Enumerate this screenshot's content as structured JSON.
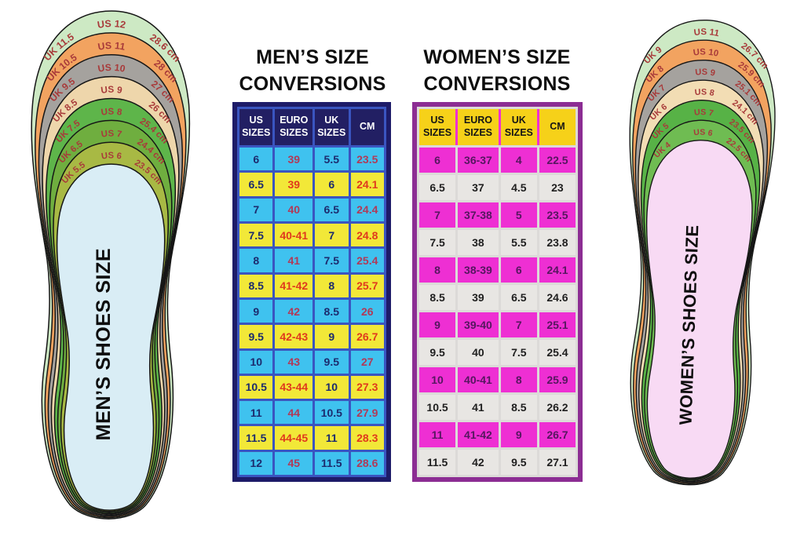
{
  "page": {
    "background": "#ffffff"
  },
  "mens_section": {
    "title_line1": "MEN’S SIZE",
    "title_line2": "CONVERSIONS"
  },
  "womens_section": {
    "title_line1": "WOMEN’S SIZE",
    "title_line2": "CONVERSIONS"
  },
  "chart_data": [
    {
      "type": "table",
      "title": "MEN’S SIZE CONVERSIONS",
      "columns": [
        "US SIZES",
        "EURO SIZES",
        "UK SIZES",
        "CM"
      ],
      "rows": [
        [
          "6",
          "39",
          "5.5",
          "23.5"
        ],
        [
          "6.5",
          "39",
          "6",
          "24.1"
        ],
        [
          "7",
          "40",
          "6.5",
          "24.4"
        ],
        [
          "7.5",
          "40-41",
          "7",
          "24.8"
        ],
        [
          "8",
          "41",
          "7.5",
          "25.4"
        ],
        [
          "8.5",
          "41-42",
          "8",
          "25.7"
        ],
        [
          "9",
          "42",
          "8.5",
          "26"
        ],
        [
          "9.5",
          "42-43",
          "9",
          "26.7"
        ],
        [
          "10",
          "43",
          "9.5",
          "27"
        ],
        [
          "10.5",
          "43-44",
          "10",
          "27.3"
        ],
        [
          "11",
          "44",
          "10.5",
          "27.9"
        ],
        [
          "11.5",
          "44-45",
          "11",
          "28.3"
        ],
        [
          "12",
          "45",
          "11.5",
          "28.6"
        ]
      ],
      "style": {
        "border": "#1d1b68",
        "grid": "#3a55c0",
        "header_bg": "#221f63",
        "header_text": "#ffffff",
        "row_colors": [
          "#3fc2ef",
          "#f2e838"
        ],
        "size_text": "#1c2b6e",
        "accent_text": [
          "#b03a58",
          "#e0391d"
        ]
      }
    },
    {
      "type": "table",
      "title": "WOMEN’S SIZE CONVERSIONS",
      "columns": [
        "US SIZES",
        "EURO SIZES",
        "UK SIZES",
        "CM"
      ],
      "rows": [
        [
          "6",
          "36-37",
          "4",
          "22.5"
        ],
        [
          "6.5",
          "37",
          "4.5",
          "23"
        ],
        [
          "7",
          "37-38",
          "5",
          "23.5"
        ],
        [
          "7.5",
          "38",
          "5.5",
          "23.8"
        ],
        [
          "8",
          "38-39",
          "6",
          "24.1"
        ],
        [
          "8.5",
          "39",
          "6.5",
          "24.6"
        ],
        [
          "9",
          "39-40",
          "7",
          "25.1"
        ],
        [
          "9.5",
          "40",
          "7.5",
          "25.4"
        ],
        [
          "10",
          "40-41",
          "8",
          "25.9"
        ],
        [
          "10.5",
          "41",
          "8.5",
          "26.2"
        ],
        [
          "11",
          "41-42",
          "9",
          "26.7"
        ],
        [
          "11.5",
          "42",
          "9.5",
          "27.1"
        ]
      ],
      "style": {
        "border": "#8c2d93",
        "grid": "#dcdad8",
        "header_bg": "#f6d119",
        "header_text": "#151515",
        "row_colors": [
          "#ee2fd3",
          "#e8e6e3"
        ],
        "row_text": [
          "#55175f",
          "#1f1f1f"
        ]
      }
    }
  ],
  "mens_insole": {
    "label": "MEN’S SHOES SIZE",
    "inner_color": "#d9edf5",
    "band_text_color": "#a83a3a",
    "bands": [
      {
        "uk": "UK 11.5",
        "us": "US 12",
        "cm": "28.6 cm",
        "color": "#cde9c4"
      },
      {
        "uk": "UK 10.5",
        "us": "US 11",
        "cm": "28 cm",
        "color": "#f2a360"
      },
      {
        "uk": "UK 9.5",
        "us": "US 10",
        "cm": "27 cm",
        "color": "#a5a29e"
      },
      {
        "uk": "UK 8.5",
        "us": "US 9",
        "cm": "26 cm",
        "color": "#eed6ab"
      },
      {
        "uk": "UK 7.5",
        "us": "US 8",
        "cm": "25.4 cm",
        "color": "#5eb54a"
      },
      {
        "uk": "UK 6.5",
        "us": "US 7",
        "cm": "24.4 cm",
        "color": "#6fae3f"
      },
      {
        "uk": "UK 5.5",
        "us": "US 6",
        "cm": "23.5 cm",
        "color": "#a8b944"
      }
    ]
  },
  "womens_insole": {
    "label": "WOMEN’S SHOES SIZE",
    "inner_color": "#f8daf4",
    "band_text_color": "#a83a3a",
    "bands": [
      {
        "uk": "UK 9",
        "us": "US 11",
        "cm": "26.7 cm",
        "color": "#cde9c4"
      },
      {
        "uk": "UK 8",
        "us": "US 10",
        "cm": "25.9 cm",
        "color": "#f2a360"
      },
      {
        "uk": "UK 7",
        "us": "US 9",
        "cm": "25.1 cm",
        "color": "#a5a29e"
      },
      {
        "uk": "UK 6",
        "us": "US 8",
        "cm": "24.1 cm",
        "color": "#f2ddb4"
      },
      {
        "uk": "UK 5",
        "us": "US 7",
        "cm": "23.5 cm",
        "color": "#57b246"
      },
      {
        "uk": "UK 4",
        "us": "US 6",
        "cm": "22.5 cm",
        "color": "#6fbc52"
      }
    ]
  }
}
